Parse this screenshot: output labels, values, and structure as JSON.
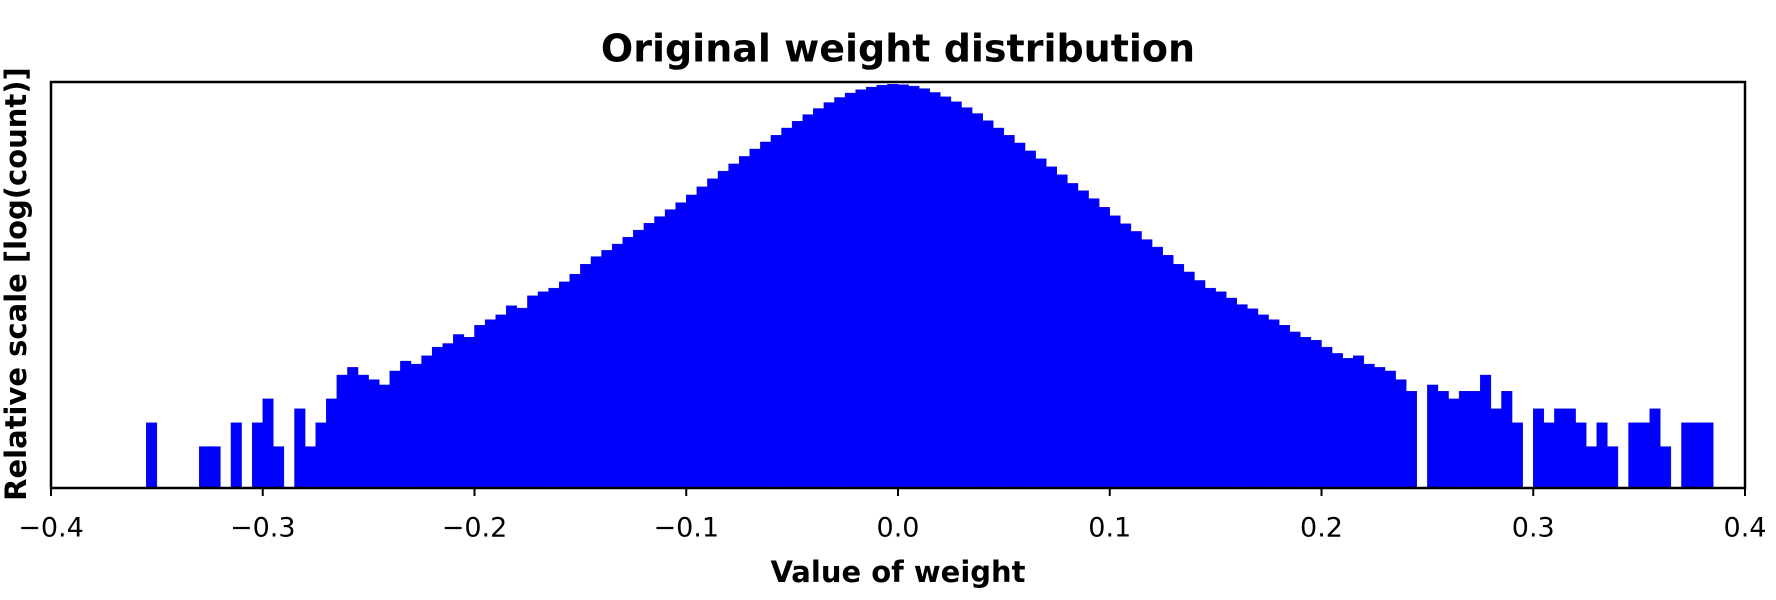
{
  "chart_data": {
    "type": "histogram",
    "title": "Original weight distribution",
    "xlabel": "Value of weight",
    "ylabel": "Relative scale [log(count)]",
    "color": "#0000ff",
    "yscale": "log",
    "xlim": [
      -0.4,
      0.4
    ],
    "ylim": [
      0.3,
      40000
    ],
    "xticks": [
      {
        "value": -0.4,
        "label": "−0.4"
      },
      {
        "value": -0.3,
        "label": "−0.3"
      },
      {
        "value": -0.2,
        "label": "−0.2"
      },
      {
        "value": -0.1,
        "label": "−0.1"
      },
      {
        "value": 0,
        "label": "0.0"
      },
      0.1,
      0.2,
      0.3,
      0.4
    ],
    "bins": [
      -0.355,
      -0.35,
      -0.345,
      -0.34,
      -0.335,
      -0.33,
      -0.325,
      -0.32,
      -0.315,
      -0.31,
      -0.305,
      -0.3,
      -0.295,
      -0.29,
      -0.285,
      -0.28,
      -0.275,
      -0.27,
      -0.265,
      -0.26,
      -0.255,
      -0.25,
      -0.245,
      -0.24,
      -0.235,
      -0.23,
      -0.225,
      -0.22,
      -0.215,
      -0.21,
      -0.205,
      -0.2,
      -0.195,
      -0.19,
      -0.185,
      -0.18,
      -0.175,
      -0.17,
      -0.165,
      -0.16,
      -0.155,
      -0.15,
      -0.145,
      -0.14,
      -0.135,
      -0.13,
      -0.125,
      -0.12,
      -0.115,
      -0.11,
      -0.105,
      -0.1,
      -0.095,
      -0.09,
      -0.085,
      -0.08,
      -0.075,
      -0.07,
      -0.065,
      -0.06,
      -0.055,
      -0.05,
      -0.045,
      -0.04,
      -0.035,
      -0.03,
      -0.025,
      -0.02,
      -0.015,
      -0.01,
      -0.005,
      0,
      0.005,
      0.01,
      0.015,
      0.02,
      0.025,
      0.03,
      0.035,
      0.04,
      0.045,
      0.05,
      0.055,
      0.06,
      0.065,
      0.07,
      0.075,
      0.08,
      0.085,
      0.09,
      0.095,
      0.1,
      0.105,
      0.11,
      0.115,
      0.12,
      0.125,
      0.13,
      0.135,
      0.14,
      0.145,
      0.15,
      0.155,
      0.16,
      0.165,
      0.17,
      0.175,
      0.18,
      0.185,
      0.19,
      0.195,
      0.2,
      0.205,
      0.21,
      0.215,
      0.22,
      0.225,
      0.23,
      0.235,
      0.24,
      0.245,
      0.25,
      0.255,
      0.26,
      0.265,
      0.27,
      0.275,
      0.28,
      0.285,
      0.29,
      0.295,
      0.3,
      0.305,
      0.31,
      0.315,
      0.32,
      0.325,
      0.33,
      0.335,
      0.34,
      0.345,
      0.35,
      0.355,
      0.36,
      0.365,
      0.37,
      0.375,
      0.38,
      0.385
    ],
    "counts": [
      2,
      0,
      0,
      0,
      0,
      1,
      1,
      0,
      2,
      0,
      2,
      4,
      1,
      0,
      3,
      1,
      2,
      4,
      8,
      10,
      8,
      7,
      6,
      9,
      12,
      11,
      14,
      18,
      20,
      26,
      24,
      34,
      40,
      46,
      60,
      56,
      80,
      90,
      100,
      120,
      150,
      200,
      250,
      300,
      360,
      440,
      540,
      660,
      800,
      980,
      1200,
      1500,
      1900,
      2400,
      3000,
      3700,
      4600,
      5700,
      7000,
      8500,
      10500,
      12800,
      15500,
      18500,
      22000,
      25500,
      29000,
      32000,
      34500,
      36500,
      37500,
      37000,
      35500,
      33000,
      29500,
      26000,
      22500,
      19000,
      16000,
      13000,
      10500,
      8500,
      6800,
      5400,
      4300,
      3400,
      2700,
      2100,
      1700,
      1350,
      1050,
      820,
      650,
      520,
      410,
      330,
      260,
      200,
      160,
      125,
      100,
      90,
      75,
      62,
      55,
      46,
      40,
      34,
      28,
      24,
      22,
      18,
      15,
      13,
      14,
      11,
      10,
      9,
      7,
      5,
      0,
      6,
      5,
      4,
      5,
      5,
      8,
      3,
      5,
      2,
      0,
      3,
      2,
      3,
      3,
      2,
      1,
      2,
      1,
      0,
      2,
      2,
      3,
      1,
      0,
      2,
      2,
      2
    ]
  }
}
